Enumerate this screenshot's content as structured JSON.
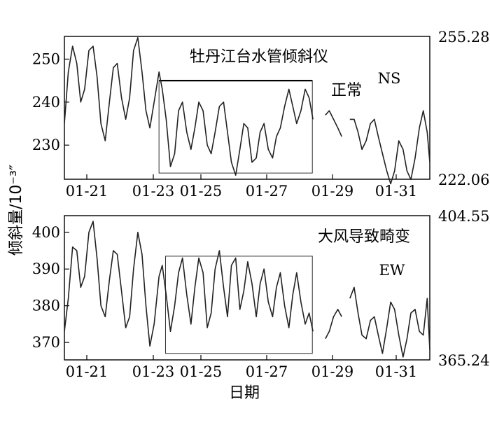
{
  "figure": {
    "ylabel": "倾斜量/10⁻³″",
    "xlabel": "日期"
  },
  "chart_data": [
    {
      "type": "line",
      "title": "牡丹江台水管倾斜仪",
      "annotation": "正常",
      "component": "NS",
      "x_ticks": [
        "01-21",
        "01-23",
        "01-25",
        "01-27",
        "01-29",
        "01-31"
      ],
      "y_ticks": [
        230,
        240,
        250
      ],
      "right_labels": [
        "255.28",
        "222.06"
      ],
      "ylim": [
        222.06,
        255.28
      ],
      "xlim": [
        0.0,
        11.2
      ],
      "highlight_box": {
        "x": [
          2.9,
          7.6
        ],
        "y": [
          223.5,
          245.0
        ]
      },
      "series": [
        {
          "x": [
            0.0,
            0.12,
            0.25,
            0.38,
            0.5,
            0.62,
            0.75,
            0.88,
            1.0,
            1.12,
            1.25,
            1.38,
            1.5,
            1.62,
            1.75,
            1.88,
            2.0,
            2.12,
            2.25,
            2.38,
            2.5,
            2.62,
            2.75,
            2.9,
            3.0,
            3.12,
            3.25,
            3.38,
            3.5,
            3.62,
            3.75,
            3.88,
            4.0,
            4.12,
            4.25,
            4.38,
            4.5,
            4.62,
            4.75,
            4.88,
            5.0,
            5.12,
            5.25,
            5.38,
            5.5,
            5.62,
            5.75,
            5.88,
            6.0,
            6.12,
            6.25,
            6.38,
            6.5,
            6.62,
            6.75,
            6.88,
            7.0,
            7.12,
            7.25,
            7.38,
            7.5,
            7.62
          ],
          "y": [
            235,
            247,
            253,
            249,
            240,
            243,
            252,
            253,
            246,
            235,
            231,
            240,
            248,
            249,
            241,
            236,
            241,
            252,
            255,
            247,
            238,
            234,
            240,
            247,
            243,
            236,
            225,
            228,
            238,
            240,
            233,
            229,
            234,
            240,
            238,
            230,
            228,
            233,
            239,
            240,
            233,
            226,
            223,
            229,
            235,
            234,
            226,
            227,
            233,
            235,
            229,
            227,
            232,
            234,
            239,
            243,
            239,
            235,
            238,
            243,
            241,
            236
          ]
        },
        {
          "x": [
            8.0,
            8.12,
            8.25,
            8.38,
            8.5
          ],
          "y": [
            237,
            238,
            236,
            234,
            232
          ]
        },
        {
          "x": [
            8.75,
            8.88,
            9.0,
            9.12,
            9.25,
            9.38,
            9.5,
            9.62,
            9.75,
            9.88,
            10.0,
            10.12,
            10.25,
            10.38,
            10.5,
            10.62,
            10.75,
            10.88,
            11.0,
            11.12,
            11.2
          ],
          "y": [
            236,
            236,
            233,
            229,
            231,
            235,
            236,
            232,
            228,
            224,
            221,
            224,
            231,
            229,
            224,
            222,
            227,
            234,
            238,
            233,
            226
          ]
        }
      ]
    },
    {
      "type": "line",
      "title": "大风导致畸变",
      "component": "EW",
      "x_ticks": [
        "01-21",
        "01-23",
        "01-25",
        "01-27",
        "01-29",
        "01-31"
      ],
      "y_ticks": [
        370,
        380,
        390,
        400
      ],
      "right_labels": [
        "404.55",
        "365.24"
      ],
      "ylim": [
        365.24,
        404.55
      ],
      "xlim": [
        0.0,
        11.2
      ],
      "highlight_box": {
        "x": [
          3.1,
          7.6
        ],
        "y": [
          367.0,
          393.5
        ]
      },
      "series": [
        {
          "x": [
            0.0,
            0.12,
            0.25,
            0.38,
            0.5,
            0.62,
            0.75,
            0.88,
            1.0,
            1.12,
            1.25,
            1.38,
            1.5,
            1.62,
            1.75,
            1.88,
            2.0,
            2.12,
            2.25,
            2.38,
            2.5,
            2.62,
            2.75,
            2.9,
            3.0,
            3.12,
            3.25,
            3.38,
            3.5,
            3.62,
            3.75,
            3.88,
            4.0,
            4.12,
            4.25,
            4.38,
            4.5,
            4.62,
            4.75,
            4.88,
            5.0,
            5.12,
            5.25,
            5.38,
            5.5,
            5.62,
            5.75,
            5.88,
            6.0,
            6.12,
            6.25,
            6.38,
            6.5,
            6.62,
            6.75,
            6.88,
            7.0,
            7.12,
            7.25,
            7.38,
            7.5,
            7.62
          ],
          "y": [
            373,
            382,
            396,
            395,
            385,
            388,
            400,
            403,
            393,
            380,
            377,
            387,
            395,
            394,
            384,
            374,
            377,
            390,
            400,
            394,
            380,
            369,
            375,
            388,
            391,
            383,
            373,
            380,
            389,
            393,
            383,
            375,
            385,
            393,
            389,
            374,
            378,
            390,
            395,
            385,
            377,
            391,
            393,
            379,
            384,
            392,
            386,
            377,
            386,
            390,
            381,
            377,
            385,
            389,
            380,
            374,
            383,
            389,
            381,
            375,
            378,
            373
          ]
        },
        {
          "x": [
            8.0,
            8.12,
            8.25,
            8.38,
            8.5
          ],
          "y": [
            371,
            373,
            377,
            379,
            377
          ]
        },
        {
          "x": [
            8.75,
            8.88,
            9.0,
            9.12,
            9.25,
            9.38,
            9.5,
            9.62,
            9.75,
            9.88,
            10.0,
            10.12,
            10.25,
            10.38,
            10.5,
            10.62,
            10.75,
            10.88,
            11.0,
            11.12,
            11.2
          ],
          "y": [
            382,
            385,
            378,
            372,
            371,
            376,
            377,
            372,
            367,
            374,
            381,
            379,
            372,
            366,
            371,
            378,
            379,
            373,
            372,
            382,
            368
          ]
        }
      ]
    }
  ]
}
